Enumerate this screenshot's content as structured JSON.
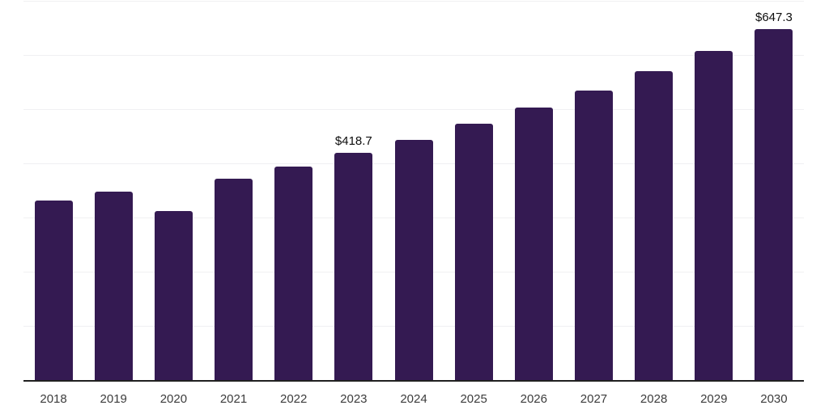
{
  "chart_data": {
    "type": "bar",
    "title": "",
    "xlabel": "",
    "ylabel": "",
    "categories": [
      "2018",
      "2019",
      "2020",
      "2021",
      "2022",
      "2023",
      "2024",
      "2025",
      "2026",
      "2027",
      "2028",
      "2029",
      "2030"
    ],
    "values": [
      331.3,
      347.8,
      311.9,
      371.6,
      394.0,
      418.7,
      443.3,
      473.2,
      503.0,
      534.4,
      570.2,
      607.5,
      647.3
    ],
    "data_labels": [
      {
        "category": "2023",
        "text": "$418.7"
      },
      {
        "category": "2030",
        "text": "$647.3"
      }
    ],
    "ylim": [
      0,
      700
    ],
    "gridline_step": 100,
    "grid": true,
    "legend": "none",
    "colors": {
      "bar_fill": "#341a52",
      "gridline": "#f0f0f2",
      "axis_line": "#202020",
      "tick_label": "#3c3c3c",
      "data_label": "#0d0d0d",
      "background": "#ffffff"
    }
  }
}
